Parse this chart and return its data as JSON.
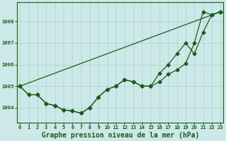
{
  "xlabel": "Graphe pression niveau de la mer (hPa)",
  "bg_color": "#cce8e8",
  "grid_color": "#aed0d0",
  "line_color": "#1a5c1a",
  "x_ticks": [
    0,
    1,
    2,
    3,
    4,
    5,
    6,
    7,
    8,
    9,
    10,
    11,
    12,
    13,
    14,
    15,
    16,
    17,
    18,
    19,
    20,
    21,
    22,
    23
  ],
  "y_ticks": [
    1004,
    1005,
    1006,
    1007,
    1008
  ],
  "ylim": [
    1003.3,
    1008.9
  ],
  "xlim": [
    -0.3,
    23.3
  ],
  "line_straight": [
    1005.0,
    null,
    null,
    null,
    null,
    null,
    null,
    null,
    null,
    null,
    null,
    null,
    null,
    null,
    null,
    null,
    null,
    null,
    null,
    null,
    null,
    null,
    null,
    1008.45
  ],
  "line_upper": [
    1005.0,
    1004.6,
    1004.6,
    1004.2,
    1004.1,
    1003.9,
    1003.85,
    1003.75,
    1004.0,
    1004.5,
    1004.85,
    1005.0,
    1005.3,
    1005.2,
    1005.0,
    1005.0,
    1005.6,
    1006.0,
    1006.5,
    1007.0,
    1006.5,
    1007.5,
    1008.3,
    1008.45
  ],
  "line_lower": [
    1005.0,
    1004.6,
    1004.6,
    1004.2,
    1004.1,
    1003.9,
    1003.85,
    1003.75,
    1004.0,
    1004.5,
    1004.85,
    1005.0,
    1005.3,
    1005.2,
    1005.0,
    1005.0,
    1005.2,
    1005.55,
    1005.75,
    1006.05,
    1007.0,
    1008.45,
    1008.3,
    1008.45
  ],
  "marker_size": 2.5,
  "line_width": 0.9,
  "tick_fontsize": 5.2,
  "xlabel_fontsize": 7.0
}
